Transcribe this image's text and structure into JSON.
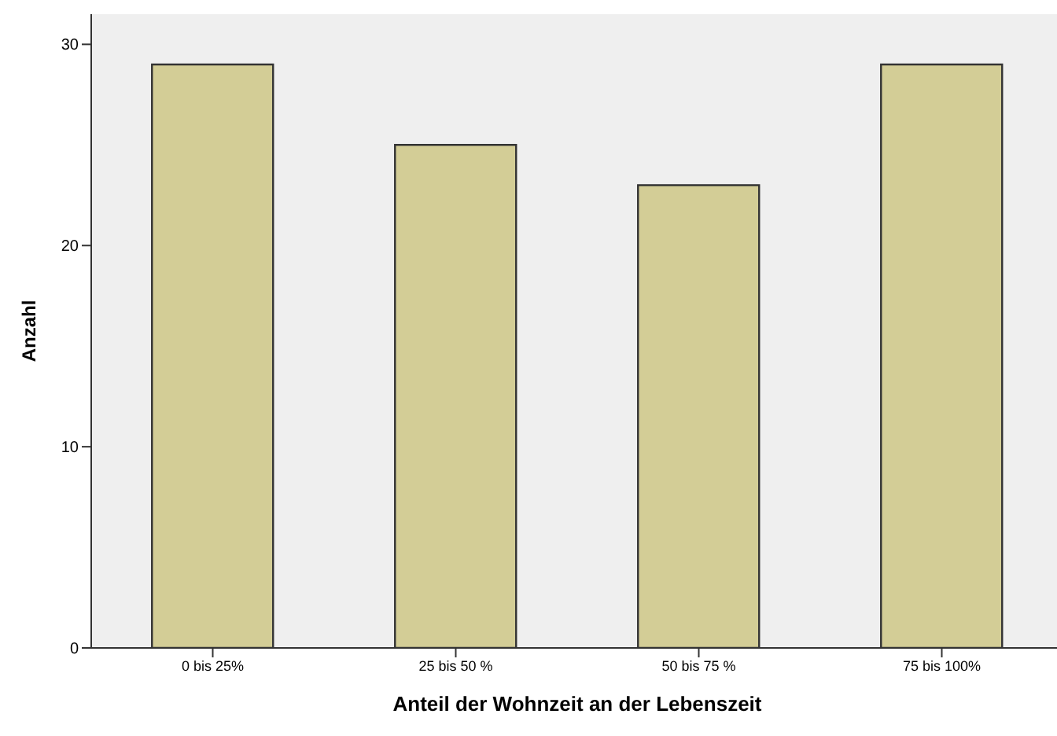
{
  "chart_data": {
    "type": "bar",
    "xlabel": "Anteil der Wohnzeit an der Lebenszeit",
    "ylabel": "Anzahl",
    "categories": [
      "0 bis 25%",
      "25 bis 50 %",
      "50 bis 75 %",
      "75 bis 100%"
    ],
    "values": [
      29,
      25,
      23,
      29
    ],
    "color": "#d3cd96",
    "ylim": [
      0,
      31.5
    ],
    "yticks": [
      0,
      10,
      20,
      30
    ],
    "grid": false
  }
}
